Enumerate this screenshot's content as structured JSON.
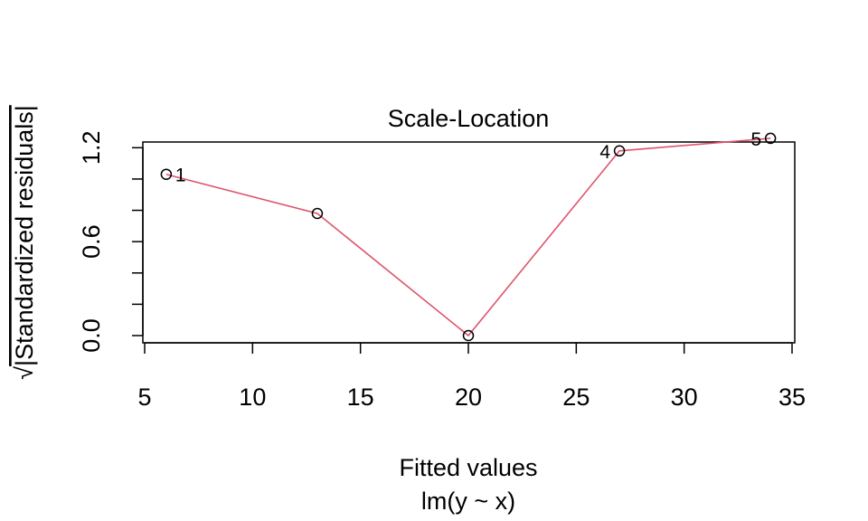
{
  "chart_data": {
    "type": "line",
    "title": "Scale-Location",
    "xlabel": "Fitted values",
    "subtitle": "lm(y ~ x)",
    "ylabel_radical": "√",
    "ylabel": "|Standardized residuals|",
    "xlim": [
      5,
      35
    ],
    "ylim": [
      0,
      1.3
    ],
    "x_ticks": [
      5,
      10,
      15,
      20,
      25,
      30,
      35
    ],
    "y_ticks_labeled": [
      "0.0",
      "0.6",
      "1.2"
    ],
    "y_tick_values": [
      0,
      0.2,
      0.4,
      0.6,
      0.8,
      1.0,
      1.2
    ],
    "grid": false,
    "series": [
      {
        "x": [
          6,
          13,
          20,
          27,
          34
        ],
        "y": [
          1.03,
          0.78,
          0.0,
          1.18,
          1.26
        ],
        "point_labels": [
          "1",
          "",
          "",
          "4",
          "5"
        ],
        "point_color": "#000000",
        "line_color": "#DF536B"
      }
    ]
  }
}
